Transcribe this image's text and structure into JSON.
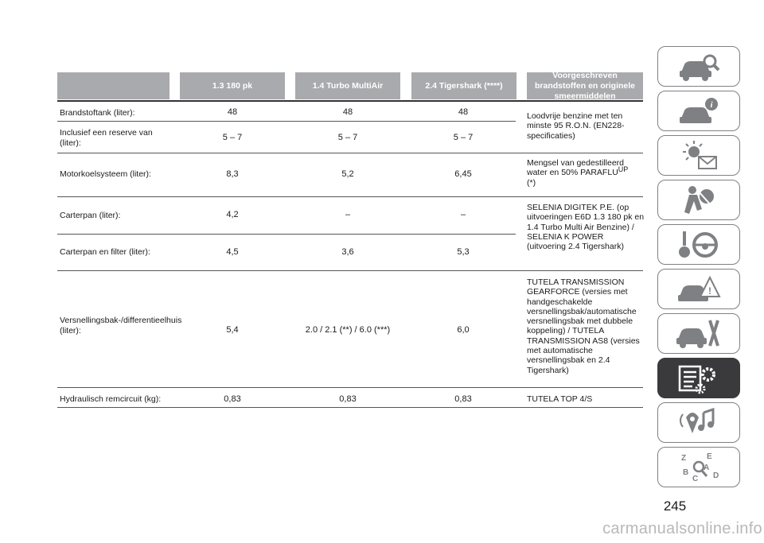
{
  "table": {
    "headers": [
      "",
      "1.3 180 pk",
      "1.4 Turbo MultiAir",
      "2.4 Tigershark (****)",
      "Voorgeschreven brandstoffen en originele smeermiddelen"
    ],
    "rows": [
      {
        "label": "Brandstoftank (liter):",
        "v1": "48",
        "v2": "48",
        "v3": "48"
      },
      {
        "label": "Inclusief een reserve van (liter):",
        "v1": "5 – 7",
        "v2": "5 – 7",
        "v3": "5 – 7"
      },
      {
        "label": "Motorkoelsysteem (liter):",
        "v1": "8,3",
        "v2": "5,2",
        "v3": "6,45"
      },
      {
        "label": "Carterpan (liter):",
        "v1": "4,2",
        "v2": "–",
        "v3": "–"
      },
      {
        "label": "Carterpan en filter (liter):",
        "v1": "4,5",
        "v2": "3,6",
        "v3": "5,3"
      },
      {
        "label": "Versnellingsbak-/differentieelhuis (liter):",
        "v1": "5,4",
        "v2": "2.0 / 2.1 (**) / 6.0 (***)",
        "v3": "6,0"
      },
      {
        "label": "Hydraulisch remcircuit (kg):",
        "v1": "0,83",
        "v2": "0,83",
        "v3": "0,83"
      }
    ],
    "recommendations": {
      "fuel": "Loodvrije benzine met ten minste 95 R.O.N. (EN228-specificaties)",
      "coolant_main": "Mengsel van gedestilleerd water en 50% PARAFLU",
      "coolant_sup": "UP",
      "coolant_note": "(*)",
      "engine_oil": "SELENIA DIGITEK P.E. (op uitvoeringen E6D 1.3 180 pk en 1.4 Turbo Multi Air Benzine) / SELENIA K POWER (uitvoering 2.4 Tigershark)",
      "transmission": "TUTELA TRANSMISSION GEARFORCE (versies met handgeschakelde versnellingsbak/automatische versnellingsbak met dubbele koppeling) / TUTELA TRANSMISSION AS8 (versies met automatische versnellingsbak en 2.4 Tigershark)",
      "brake": "TUTELA TOP 4/S"
    }
  },
  "sidebar": {
    "tabs": [
      {
        "icon": "car-search-icon",
        "active": false
      },
      {
        "icon": "car-info-icon",
        "active": false
      },
      {
        "icon": "light-message-icon",
        "active": false
      },
      {
        "icon": "airbag-icon",
        "active": false
      },
      {
        "icon": "key-steering-icon",
        "active": false
      },
      {
        "icon": "car-warning-icon",
        "active": false
      },
      {
        "icon": "car-tools-icon",
        "active": false
      },
      {
        "icon": "specs-gear-icon",
        "active": true
      },
      {
        "icon": "multimedia-icon",
        "active": false
      },
      {
        "icon": "index-icon",
        "active": false
      }
    ],
    "colors": {
      "tab_border": "#7f8083",
      "active_bg": "#3a3a3c"
    }
  },
  "page_number": "245",
  "watermark": "carmanualsonline.info"
}
